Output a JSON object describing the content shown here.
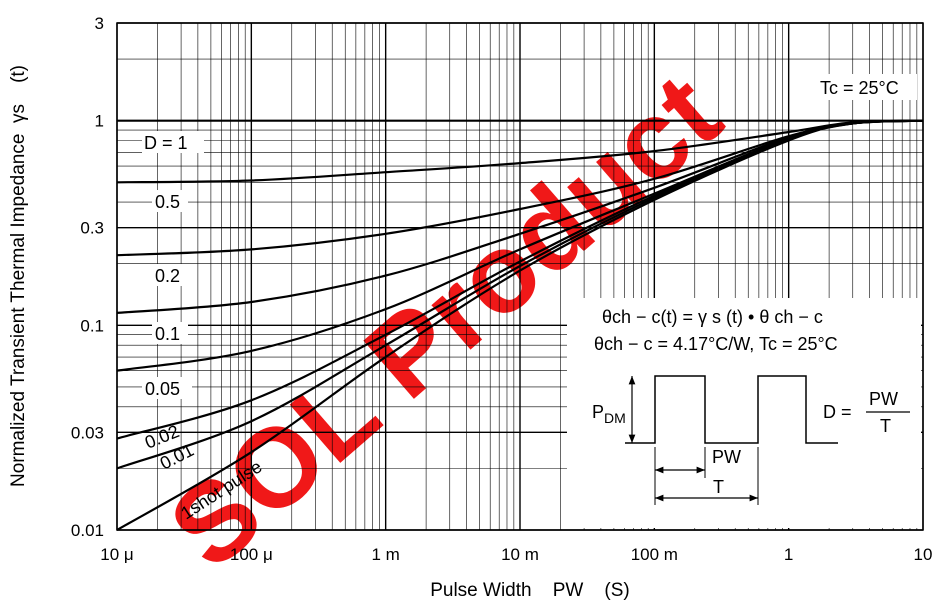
{
  "chart_data": {
    "type": "line",
    "title": "",
    "xlabel": "Pulse Width    PW    (S)",
    "ylabel": "Normalized Transient Thermal Impedance  γs    (t)",
    "xscale": "log",
    "yscale": "log",
    "xlim": [
      1e-05,
      10
    ],
    "ylim": [
      0.01,
      3
    ],
    "grid": true,
    "x_ticks": [
      {
        "value": 1e-05,
        "label": "10 μ"
      },
      {
        "value": 0.0001,
        "label": "100 μ"
      },
      {
        "value": 0.001,
        "label": "1 m"
      },
      {
        "value": 0.01,
        "label": "10 m"
      },
      {
        "value": 0.1,
        "label": "100 m"
      },
      {
        "value": 1,
        "label": "1"
      },
      {
        "value": 10,
        "label": "10"
      }
    ],
    "y_ticks": [
      {
        "value": 0.01,
        "label": "0.01"
      },
      {
        "value": 0.03,
        "label": "0.03"
      },
      {
        "value": 0.1,
        "label": "0.1"
      },
      {
        "value": 0.3,
        "label": "0.3"
      },
      {
        "value": 1,
        "label": "1"
      },
      {
        "value": 3,
        "label": "3"
      }
    ],
    "series": [
      {
        "name": "D = 1",
        "x": [
          1e-05,
          10
        ],
        "y": [
          1,
          1
        ]
      },
      {
        "name": "0.5",
        "x": [
          1e-05,
          0.0001,
          0.001,
          0.01,
          0.1,
          1,
          3,
          10
        ],
        "y": [
          0.5,
          0.51,
          0.56,
          0.62,
          0.71,
          0.88,
          0.98,
          1
        ]
      },
      {
        "name": "0.2",
        "x": [
          1e-05,
          0.0001,
          0.001,
          0.01,
          0.1,
          1,
          3,
          10
        ],
        "y": [
          0.22,
          0.235,
          0.28,
          0.37,
          0.52,
          0.84,
          0.97,
          1
        ]
      },
      {
        "name": "0.1",
        "x": [
          1e-05,
          0.0001,
          0.001,
          0.01,
          0.1,
          1,
          3,
          10
        ],
        "y": [
          0.115,
          0.13,
          0.175,
          0.28,
          0.47,
          0.83,
          0.97,
          1
        ]
      },
      {
        "name": "0.05",
        "x": [
          1e-05,
          0.0001,
          0.001,
          0.01,
          0.1,
          1,
          3,
          10
        ],
        "y": [
          0.06,
          0.075,
          0.12,
          0.235,
          0.44,
          0.82,
          0.97,
          1
        ]
      },
      {
        "name": "0.02",
        "x": [
          1e-05,
          0.0001,
          0.001,
          0.01,
          0.1,
          1,
          3,
          10
        ],
        "y": [
          0.028,
          0.043,
          0.09,
          0.205,
          0.43,
          0.81,
          0.97,
          1
        ]
      },
      {
        "name": "0.01",
        "x": [
          1e-05,
          0.0001,
          0.001,
          0.01,
          0.1,
          1,
          3,
          10
        ],
        "y": [
          0.02,
          0.034,
          0.08,
          0.195,
          0.42,
          0.81,
          0.97,
          1
        ]
      },
      {
        "name": "1shot pulse",
        "x": [
          1e-05,
          0.0001,
          0.001,
          0.01,
          0.1,
          1,
          3,
          10
        ],
        "y": [
          0.01,
          0.024,
          0.07,
          0.185,
          0.41,
          0.8,
          0.97,
          1
        ]
      }
    ],
    "annotations": {
      "tc": "Tc = 25°C",
      "formula1": "θch − c(t) = γ s (t) • θ ch − c",
      "formula2": "θch − c = 4.17°C/W, Tc = 25°C",
      "pdm": "PDM",
      "d_label": "D =",
      "d_num": "PW",
      "d_den": "T",
      "pw": "PW",
      "t": "T"
    },
    "watermark": "SOL Product"
  }
}
